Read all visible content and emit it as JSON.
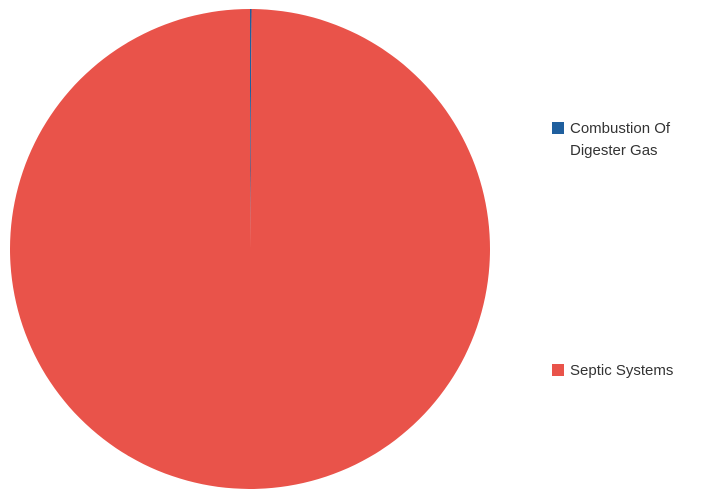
{
  "chart_data": {
    "type": "pie",
    "categories": [
      "Combustion Of Digester Gas",
      "Septic Systems"
    ],
    "values": [
      0.1,
      99.9
    ],
    "colors": [
      "#1f5f9e",
      "#e9534a"
    ],
    "legend_position": "right"
  }
}
